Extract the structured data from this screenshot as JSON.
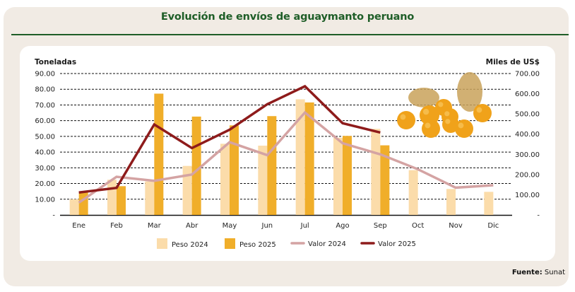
{
  "chart_data": {
    "type": "bar+line",
    "title": "Evolución de envíos de aguaymanto peruano",
    "categories": [
      "Ene",
      "Feb",
      "Mar",
      "Abr",
      "May",
      "Jun",
      "Jul",
      "Ago",
      "Sep",
      "Oct",
      "Nov",
      "Dic"
    ],
    "left_axis": {
      "label": "Toneladas",
      "ylim": [
        0,
        90
      ],
      "ticks": [
        0,
        10,
        20,
        30,
        40,
        50,
        60,
        70,
        80,
        90
      ],
      "tick_labels": [
        "-",
        "10.00",
        "20.00",
        "30.00",
        "40.00",
        "50.00",
        "60.00",
        "70.00",
        "80.00",
        "90.00"
      ]
    },
    "right_axis": {
      "label": "Miles de US$",
      "ylim": [
        0,
        700
      ],
      "ticks": [
        0,
        100,
        200,
        300,
        400,
        500,
        600,
        700
      ],
      "tick_labels": [
        "-",
        "100.00",
        "200.00",
        "300.00",
        "400.00",
        "500.00",
        "600.00",
        "700.00"
      ]
    },
    "grid": true,
    "series": [
      {
        "name": "Peso 2024",
        "type": "bar",
        "axis": "left",
        "color": "#fbdcaa",
        "values": [
          10,
          22.4,
          21.3,
          31.2,
          45.3,
          44.1,
          73.6,
          49.1,
          54.8,
          28.5,
          16.5,
          14.7
        ]
      },
      {
        "name": "Peso 2025",
        "type": "bar",
        "axis": "left",
        "color": "#f0ae2a",
        "values": [
          14.3,
          18.3,
          77.2,
          62.6,
          57.0,
          62.9,
          71.6,
          50.3,
          44.3,
          null,
          null,
          null
        ]
      },
      {
        "name": "Valor 2024",
        "type": "line",
        "axis": "right",
        "color": "#d4a3a3",
        "values": [
          61,
          189,
          169,
          200,
          360,
          296,
          507,
          355,
          300,
          226,
          135,
          147
        ]
      },
      {
        "name": "Valor 2025",
        "type": "line",
        "axis": "right",
        "color": "#8e1b1b",
        "values": [
          111,
          134,
          448,
          331,
          422,
          548,
          637,
          454,
          408,
          null,
          null,
          null
        ]
      }
    ],
    "legend": "bottom",
    "decoration": "aguaymanto-fruit-image"
  },
  "footer": {
    "source_label": "Fuente:",
    "source_value": "Sunat"
  }
}
